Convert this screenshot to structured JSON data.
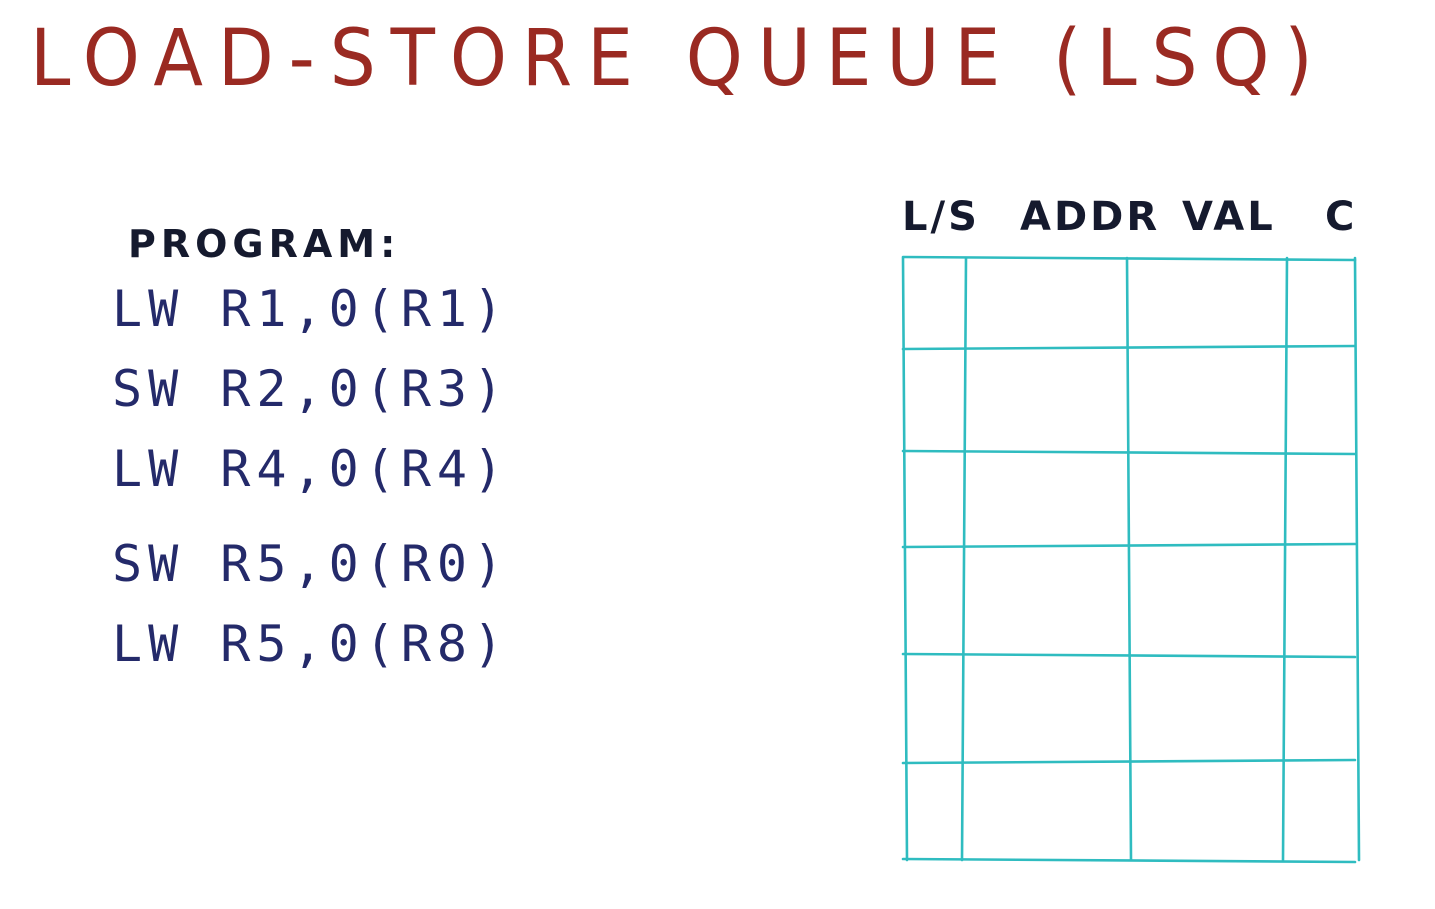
{
  "title": "LOAD-STORE QUEUE (LSQ)",
  "program": {
    "label": "PROGRAM:",
    "lines": [
      "LW R1,0(R1)",
      "SW R2,0(R3)",
      "LW R4,0(R4)",
      "SW R5,0(R0)",
      "LW R5,0(R8)"
    ]
  },
  "lsq_table": {
    "columns": [
      "L/S",
      "ADDR",
      "VAL",
      "C"
    ],
    "row_count": 6
  },
  "colors": {
    "title": "#9a2a22",
    "program_text": "#242a6a",
    "header_text": "#151a2e",
    "grid": "#2fbcc0"
  }
}
